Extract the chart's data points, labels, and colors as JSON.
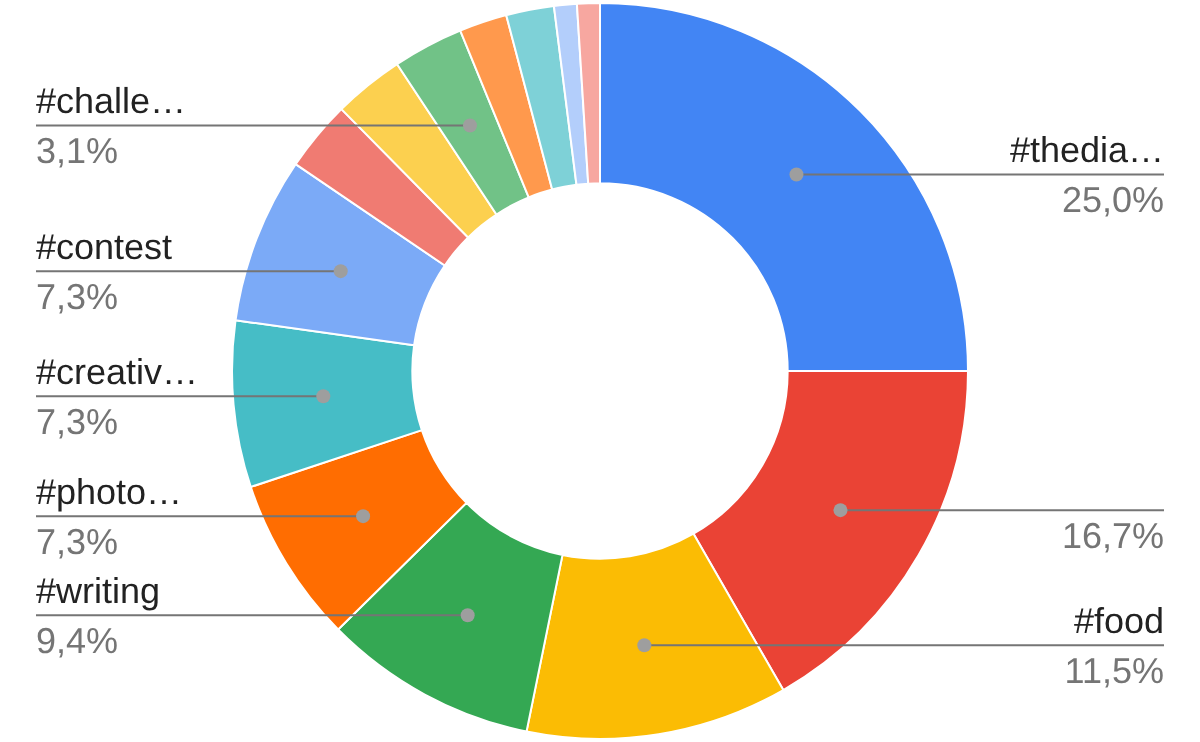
{
  "chart_data": {
    "type": "donut",
    "categories": [
      "#thedia…",
      null,
      "#food",
      "#writing",
      "#photo…",
      "#creativ…",
      "#contest",
      null,
      null,
      "#challe…",
      null,
      null,
      null,
      null
    ],
    "values": [
      25.0,
      16.7,
      11.5,
      9.4,
      7.3,
      7.3,
      7.3,
      3.1,
      3.1,
      3.1,
      2.1,
      2.1,
      1.0,
      1.0
    ],
    "value_labels": [
      "25,0%",
      "16,7%",
      "11,5%",
      "9,4%",
      "7,3%",
      "7,3%",
      "7,3%",
      null,
      null,
      "3,1%",
      null,
      null,
      null,
      null
    ],
    "colors": [
      "#4285f4",
      "#ea4335",
      "#fbbc04",
      "#34a853",
      "#ff6d01",
      "#46bdc6",
      "#7baaf7",
      "#f07b72",
      "#fcd04f",
      "#71c287",
      "#ff994d",
      "#7ed1d7",
      "#b3cefb",
      "#f7a7a0"
    ],
    "legend": false
  }
}
